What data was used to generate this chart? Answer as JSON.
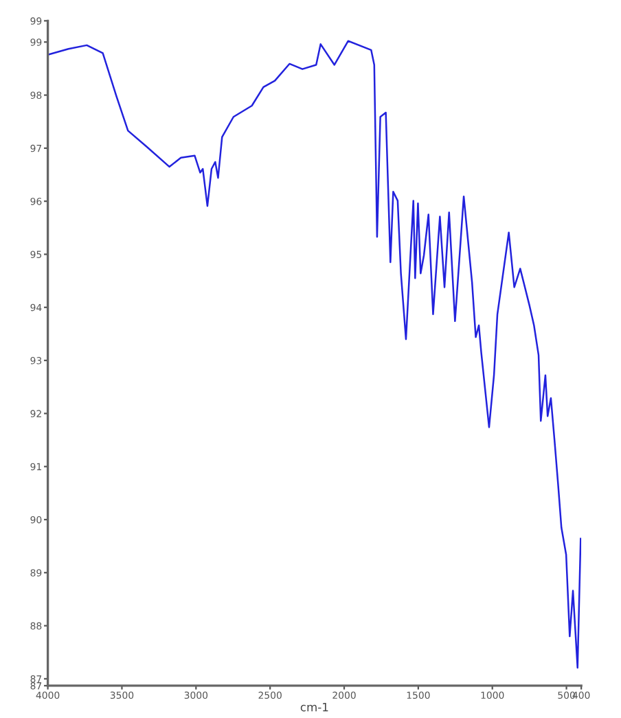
{
  "chart_data": {
    "type": "line",
    "xlabel": "cm-1",
    "xlim": [
      4000,
      400
    ],
    "xticks": [
      4000,
      3500,
      3000,
      2500,
      2000,
      1500,
      1000,
      500,
      400
    ],
    "ylim": [
      86.87,
      99.4
    ],
    "yticks": [
      {
        "value": 86.87,
        "label": "87"
      },
      87,
      88,
      89,
      90,
      91,
      92,
      93,
      94,
      95,
      96,
      97,
      98,
      99,
      {
        "value": 99.4,
        "label": "99"
      }
    ],
    "grid": false,
    "marker": "none",
    "line_style": "solid",
    "series": [
      {
        "color": "#2222dd",
        "x": [
          4000,
          3861,
          3737,
          3629,
          3536,
          3459,
          3334,
          3180,
          3102,
          3009,
          2972,
          2954,
          2923,
          2895,
          2870,
          2851,
          2824,
          2747,
          2623,
          2545,
          2468,
          2369,
          2282,
          2189,
          2159,
          2066,
          1973,
          1818,
          1797,
          1778,
          1756,
          1719,
          1688,
          1669,
          1639,
          1617,
          1583,
          1533,
          1521,
          1502,
          1484,
          1462,
          1431,
          1400,
          1354,
          1323,
          1292,
          1252,
          1193,
          1137,
          1112,
          1091,
          1075,
          1022,
          989,
          966,
          889,
          852,
          812,
          750,
          719,
          688,
          673,
          642,
          627,
          605,
          580,
          555,
          534,
          502,
          478,
          456,
          425,
          404
        ],
        "values": [
          98.76,
          98.87,
          98.94,
          98.79,
          97.97,
          97.33,
          97.03,
          96.65,
          96.82,
          96.86,
          96.54,
          96.61,
          95.91,
          96.61,
          96.74,
          96.44,
          97.21,
          97.59,
          97.8,
          98.15,
          98.27,
          98.59,
          98.49,
          98.57,
          98.96,
          98.57,
          99.02,
          98.85,
          98.57,
          95.33,
          97.59,
          97.67,
          94.85,
          96.18,
          96.01,
          94.64,
          93.4,
          96.01,
          94.55,
          95.96,
          94.64,
          94.98,
          95.75,
          93.87,
          95.71,
          94.38,
          95.79,
          93.74,
          96.09,
          94.47,
          93.44,
          93.66,
          93.15,
          91.74,
          92.72,
          93.87,
          95.41,
          94.38,
          94.73,
          94.04,
          93.66,
          93.1,
          91.86,
          92.72,
          91.95,
          92.29,
          91.48,
          90.62,
          89.85,
          89.34,
          87.8,
          88.66,
          87.21,
          89.64
        ]
      }
    ]
  }
}
